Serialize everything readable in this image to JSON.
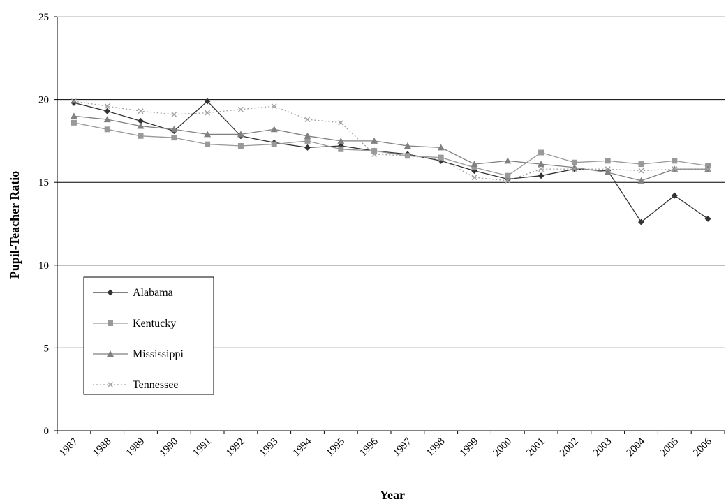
{
  "chart_data": {
    "type": "line",
    "title": "",
    "xlabel": "Year",
    "ylabel": "Pupil-Teacher Ratio",
    "categories": [
      "1987",
      "1988",
      "1989",
      "1990",
      "1991",
      "1992",
      "1993",
      "1994",
      "1995",
      "1996",
      "1997",
      "1998",
      "1999",
      "2000",
      "2001",
      "2002",
      "2003",
      "2004",
      "2005",
      "2006"
    ],
    "yticks": [
      "0",
      "5",
      "10",
      "15",
      "20",
      "25"
    ],
    "ylim": [
      0,
      25
    ],
    "grid": "horizontal major lines at 5, 10, 15, 20",
    "legend_position": "left-middle",
    "series": [
      {
        "name": "Alabama",
        "marker": "diamond",
        "color": "#333333",
        "dash": "solid",
        "values": [
          19.8,
          19.3,
          18.7,
          18.1,
          19.9,
          17.8,
          17.4,
          17.1,
          17.2,
          16.9,
          16.7,
          16.3,
          15.7,
          15.2,
          15.4,
          15.8,
          15.7,
          12.6,
          14.2,
          12.8
        ]
      },
      {
        "name": "Kentucky",
        "marker": "square",
        "color": "#999999",
        "dash": "solid",
        "values": [
          18.6,
          18.2,
          17.8,
          17.7,
          17.3,
          17.2,
          17.3,
          17.5,
          17.0,
          16.9,
          16.6,
          16.5,
          15.9,
          15.4,
          16.8,
          16.2,
          16.3,
          16.1,
          16.3,
          16.0
        ]
      },
      {
        "name": "Mississippi",
        "marker": "triangle",
        "color": "#808080",
        "dash": "solid",
        "values": [
          19.0,
          18.8,
          18.4,
          18.2,
          17.9,
          17.9,
          18.2,
          17.8,
          17.5,
          17.5,
          17.2,
          17.1,
          16.1,
          16.3,
          16.1,
          15.9,
          15.6,
          15.1,
          15.8,
          15.8
        ]
      },
      {
        "name": "Tennessee",
        "marker": "x",
        "color": "#a0a0a0",
        "dash": "dotted",
        "values": [
          19.9,
          19.6,
          19.3,
          19.1,
          19.2,
          19.4,
          19.6,
          18.8,
          18.6,
          16.7,
          16.6,
          16.4,
          15.3,
          15.1,
          15.8,
          15.8,
          15.8,
          15.7,
          15.8,
          15.8
        ]
      }
    ]
  }
}
